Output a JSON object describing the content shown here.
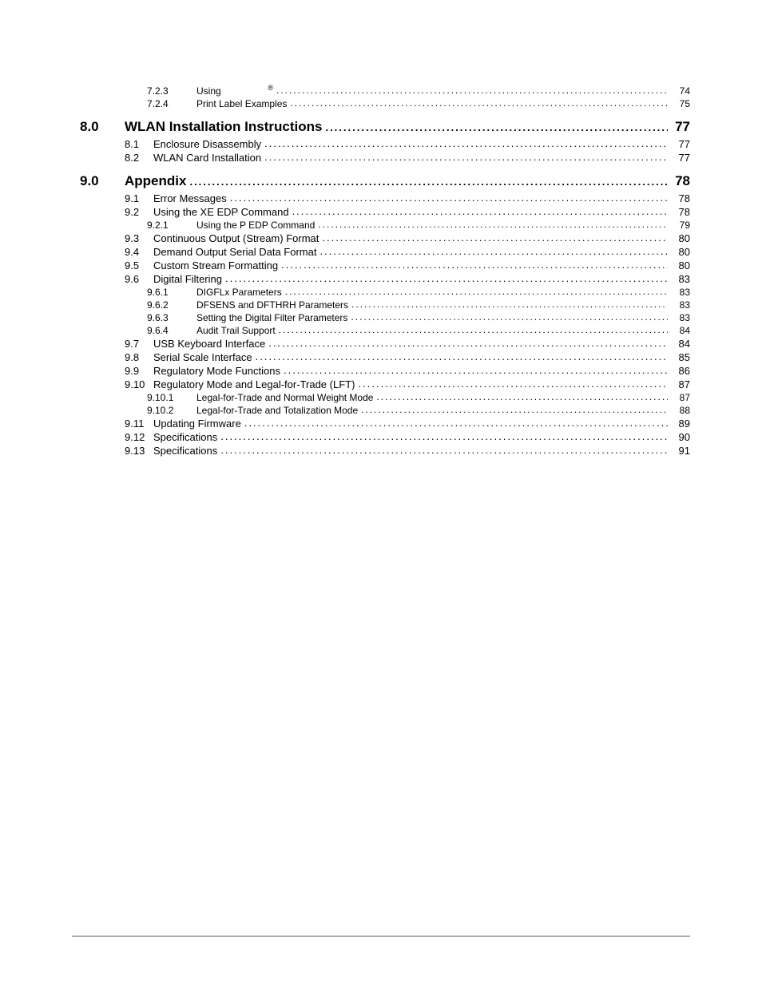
{
  "entries": [
    {
      "type": "sub2",
      "num": "7.2.3",
      "title": "Using",
      "suffix": "®",
      "page": "74"
    },
    {
      "type": "sub2",
      "num": "7.2.4",
      "title": "Print Label Examples",
      "page": "75"
    },
    {
      "type": "section",
      "num": "8.0",
      "title": "WLAN Installation Instructions",
      "page": "77"
    },
    {
      "type": "sub1",
      "num": "8.1",
      "title": "Enclosure Disassembly",
      "page": "77"
    },
    {
      "type": "sub1",
      "num": "8.2",
      "title": "WLAN Card Installation",
      "page": "77"
    },
    {
      "type": "section",
      "num": "9.0",
      "title": "Appendix",
      "page": "78"
    },
    {
      "type": "sub1",
      "num": "9.1",
      "title": "Error Messages",
      "page": "78"
    },
    {
      "type": "sub1",
      "num": "9.2",
      "title": "Using the XE EDP Command",
      "page": "78"
    },
    {
      "type": "sub2",
      "num": "9.2.1",
      "title": "Using the P EDP Command",
      "page": "79"
    },
    {
      "type": "sub1",
      "num": "9.3",
      "title": "Continuous Output (Stream) Format",
      "page": "80"
    },
    {
      "type": "sub1",
      "num": "9.4",
      "title": "Demand Output Serial Data Format",
      "page": "80"
    },
    {
      "type": "sub1",
      "num": "9.5",
      "title": "Custom Stream Formatting",
      "page": "80"
    },
    {
      "type": "sub1",
      "num": "9.6",
      "title": "Digital Filtering",
      "page": "83"
    },
    {
      "type": "sub2",
      "num": "9.6.1",
      "title": "DIGFLx Parameters",
      "page": "83"
    },
    {
      "type": "sub2",
      "num": "9.6.2",
      "title": "DFSENS and DFTHRH Parameters",
      "page": "83"
    },
    {
      "type": "sub2",
      "num": "9.6.3",
      "title": "Setting the Digital Filter Parameters",
      "page": "83"
    },
    {
      "type": "sub2",
      "num": "9.6.4",
      "title": "Audit Trail Support",
      "page": "84"
    },
    {
      "type": "sub1",
      "num": "9.7",
      "title": "USB Keyboard Interface",
      "page": "84"
    },
    {
      "type": "sub1",
      "num": "9.8",
      "title": "Serial Scale Interface",
      "page": "85"
    },
    {
      "type": "sub1",
      "num": "9.9",
      "title": "Regulatory Mode Functions",
      "page": "86"
    },
    {
      "type": "sub1",
      "num": "9.10",
      "title": "Regulatory Mode and Legal-for-Trade (LFT)",
      "page": "87"
    },
    {
      "type": "sub2",
      "num": "9.10.1",
      "title": "Legal-for-Trade and Normal Weight Mode",
      "page": "87"
    },
    {
      "type": "sub2",
      "num": "9.10.2",
      "title": "Legal-for-Trade and Totalization Mode",
      "page": "88"
    },
    {
      "type": "sub1",
      "num": "9.11",
      "title": "Updating Firmware",
      "page": "89"
    },
    {
      "type": "sub1",
      "num": "9.12",
      "title": "Specifications",
      "page": "90"
    },
    {
      "type": "sub1",
      "num": "9.13",
      "title": "Specifications",
      "page": "91"
    }
  ]
}
